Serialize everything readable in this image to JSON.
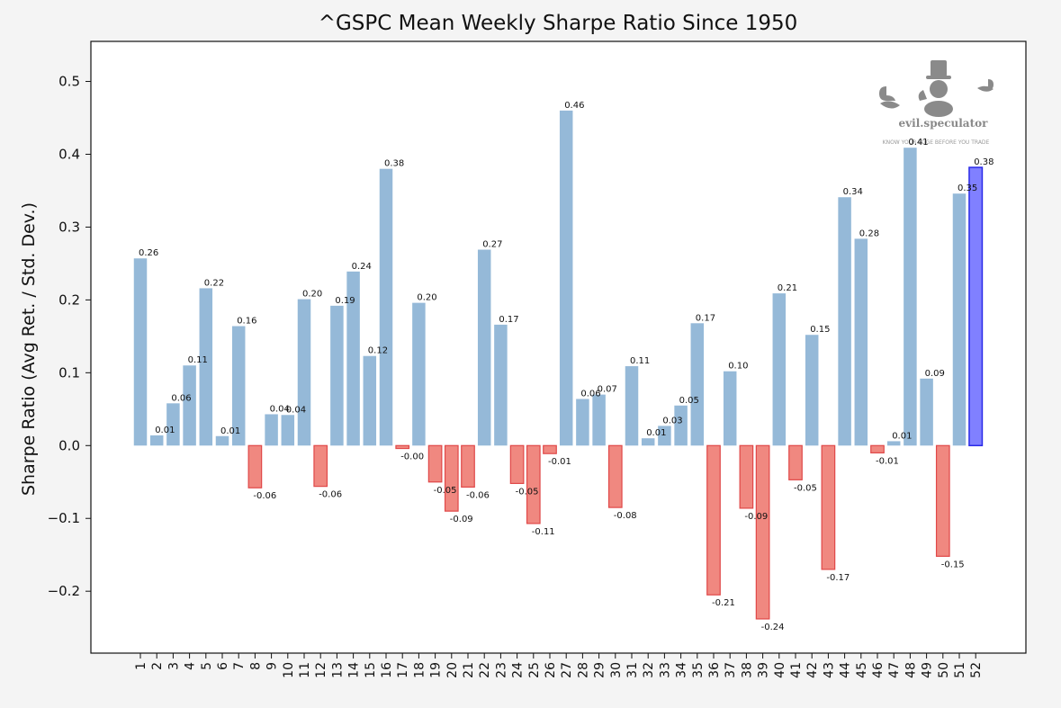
{
  "chart_data": {
    "type": "bar",
    "title": "^GSPC Mean Weekly Sharpe Ratio Since 1950",
    "xlabel": "",
    "ylabel": "Sharpe Ratio (Avg Ret. / Std. Dev.)",
    "ylim": [
      -0.285,
      0.555
    ],
    "yticks": [
      0.5,
      0.4,
      0.3,
      0.2,
      0.1,
      0.0,
      -0.1,
      -0.2
    ],
    "ytick_labels": [
      "0.5",
      "0.4",
      "0.3",
      "0.2",
      "0.1",
      "0.0",
      "−0.1",
      "−0.2"
    ],
    "grid": false,
    "categories": [
      "1",
      "2",
      "3",
      "4",
      "5",
      "6",
      "7",
      "8",
      "9",
      "10",
      "11",
      "12",
      "13",
      "14",
      "15",
      "16",
      "17",
      "18",
      "19",
      "20",
      "21",
      "22",
      "23",
      "24",
      "25",
      "26",
      "27",
      "28",
      "29",
      "30",
      "31",
      "32",
      "33",
      "34",
      "35",
      "36",
      "37",
      "38",
      "39",
      "40",
      "41",
      "42",
      "43",
      "44",
      "45",
      "46",
      "47",
      "48",
      "49",
      "50",
      "51",
      "52"
    ],
    "values": [
      0.257,
      0.014,
      0.058,
      0.11,
      0.216,
      0.013,
      0.164,
      -0.058,
      0.043,
      0.042,
      0.201,
      -0.056,
      0.192,
      0.239,
      0.123,
      0.38,
      -0.004,
      0.196,
      -0.05,
      -0.09,
      -0.057,
      0.269,
      0.166,
      -0.052,
      -0.107,
      -0.011,
      0.46,
      0.064,
      0.07,
      -0.085,
      0.109,
      0.01,
      0.027,
      0.055,
      0.168,
      -0.205,
      0.102,
      -0.086,
      -0.238,
      0.209,
      -0.047,
      0.152,
      -0.17,
      0.341,
      0.284,
      -0.01,
      0.006,
      0.409,
      0.092,
      -0.152,
      0.346,
      0.382
    ],
    "value_labels": [
      "0.26",
      "0.01",
      "0.06",
      "0.11",
      "0.22",
      "0.01",
      "0.16",
      "-0.06",
      "0.04",
      "0.04",
      "0.20",
      "-0.06",
      "0.19",
      "0.24",
      "0.12",
      "0.38",
      "-0.00",
      "0.20",
      "-0.05",
      "-0.09",
      "-0.06",
      "0.27",
      "0.17",
      "-0.05",
      "-0.11",
      "-0.01",
      "0.46",
      "0.06",
      "0.07",
      "-0.08",
      "0.11",
      "0.01",
      "0.03",
      "0.05",
      "0.17",
      "-0.21",
      "0.10",
      "-0.09",
      "-0.24",
      "0.21",
      "-0.05",
      "0.15",
      "-0.17",
      "0.34",
      "0.28",
      "-0.01",
      "0.01",
      "0.41",
      "0.09",
      "-0.15",
      "0.35",
      "0.38"
    ],
    "highlight_index": 51,
    "colors": {
      "positive": "#95b9d8",
      "negative_fill": "#f08880",
      "negative_edge": "#e04848",
      "highlight_fill": "#8080ff",
      "highlight_edge": "#2a2ae8",
      "highlight_tick": "#2a2ae8",
      "background": "#f4f4f4",
      "plot_background": "#ffffff"
    }
  },
  "watermark": {
    "name": "evil.speculator",
    "tagline": "KNOW YOUR EDGE BEFORE YOU TRADE",
    "icon": "monopoly-man-logo"
  }
}
